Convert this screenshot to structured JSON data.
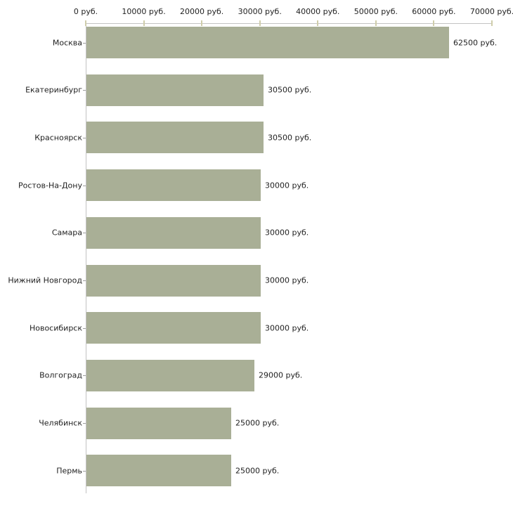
{
  "chart_data": {
    "type": "bar",
    "orientation": "horizontal",
    "title": "",
    "xlabel": "",
    "ylabel": "",
    "categories": [
      "Москва",
      "Екатеринбург",
      "Красноярск",
      "Ростов-На-Дону",
      "Самара",
      "Нижний Новгород",
      "Новосибирск",
      "Волгоград",
      "Челябинск",
      "Пермь"
    ],
    "values": [
      62500,
      30500,
      30500,
      30000,
      30000,
      30000,
      30000,
      29000,
      25000,
      25000
    ],
    "value_labels": [
      "62500 руб.",
      "30500 руб.",
      "30500 руб.",
      "30000 руб.",
      "30000 руб.",
      "30000 руб.",
      "30000 руб.",
      "29000 руб.",
      "25000 руб.",
      "25000 руб."
    ],
    "x_ticks": [
      0,
      10000,
      20000,
      30000,
      40000,
      50000,
      60000,
      70000
    ],
    "x_tick_labels": [
      "0 руб.",
      "10000 руб.",
      "20000 руб.",
      "30000 руб.",
      "40000 руб.",
      "50000 руб.",
      "60000 руб.",
      "70000 руб."
    ],
    "xlim": [
      0,
      70000
    ],
    "grid": false,
    "legend": null,
    "colors": {
      "bar": "#a9af96",
      "axis_line": "#c3c3c3",
      "x_tick": "#cfcdab",
      "category_tick": "#9b9b9b",
      "text": "#222222",
      "background": "#ffffff"
    }
  }
}
